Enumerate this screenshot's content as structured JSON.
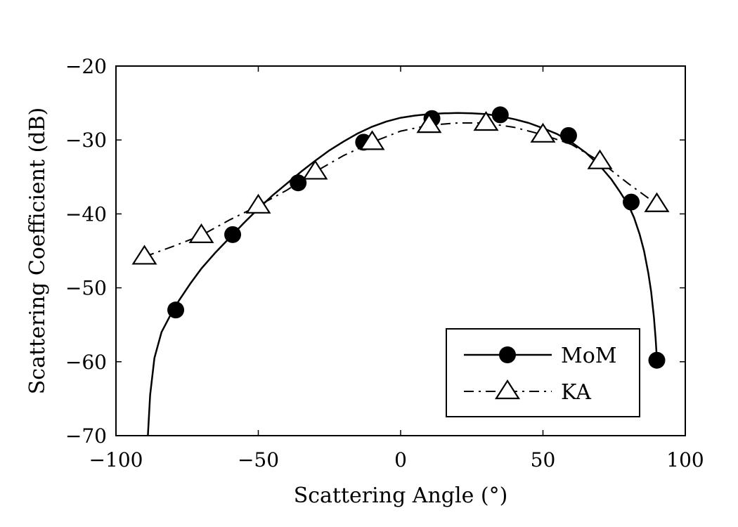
{
  "chart_data": {
    "type": "line",
    "title": "",
    "xlabel": "Scattering Angle (°)",
    "ylabel": "Scattering Coefficient (dB)",
    "xlim": [
      -100,
      100
    ],
    "ylim": [
      -70,
      -20
    ],
    "xticks": [
      -100,
      -50,
      0,
      50,
      100
    ],
    "yticks": [
      -70,
      -60,
      -50,
      -40,
      -30,
      -20
    ],
    "xtick_labels": [
      "−100",
      "−50",
      "0",
      "50",
      "100"
    ],
    "ytick_labels": [
      "−70",
      "−60",
      "−50",
      "−40",
      "−30",
      "−20"
    ],
    "grid": false,
    "legend_position": "bottom-right",
    "series": [
      {
        "name": "MoM",
        "line_style": "solid",
        "marker": "filled-circle",
        "curve_x": [
          -88.8,
          -88,
          -86.5,
          -84,
          -81,
          -78,
          -74,
          -70,
          -65,
          -60,
          -55,
          -50,
          -45,
          -40,
          -35,
          -30,
          -25,
          -20,
          -15,
          -10,
          -5,
          0,
          5,
          10,
          15,
          20,
          25,
          30,
          35,
          40,
          45,
          50,
          55,
          60,
          65,
          70,
          74,
          77,
          80,
          82,
          84,
          85.5,
          87,
          88,
          89,
          89.6,
          90
        ],
        "curve_y": [
          -70,
          -64.5,
          -59.5,
          -56,
          -53.8,
          -51.8,
          -49.5,
          -47.4,
          -45.2,
          -43.2,
          -41.2,
          -39.3,
          -37.5,
          -35.9,
          -34.3,
          -32.8,
          -31.4,
          -30.2,
          -29.1,
          -28.2,
          -27.5,
          -27,
          -26.7,
          -26.5,
          -26.4,
          -26.35,
          -26.4,
          -26.5,
          -26.8,
          -27.2,
          -27.7,
          -28.4,
          -29.2,
          -30.3,
          -31.7,
          -33.5,
          -35.3,
          -37,
          -38.8,
          -40.5,
          -42.8,
          -45,
          -48,
          -50.5,
          -54,
          -57,
          -59.5
        ],
        "x": [
          -79,
          -59,
          -36,
          -13,
          11,
          35,
          59,
          81,
          90
        ],
        "y": [
          -53,
          -42.8,
          -35.8,
          -30.3,
          -27.1,
          -26.6,
          -29.4,
          -38.4,
          -59.8
        ]
      },
      {
        "name": "KA",
        "line_style": "dash-dot",
        "marker": "open-triangle",
        "curve_x": [
          -90,
          -80,
          -70,
          -60,
          -50,
          -40,
          -30,
          -20,
          -10,
          0,
          10,
          20,
          30,
          40,
          50,
          60,
          70,
          80,
          90
        ],
        "curve_y": [
          -45.8,
          -44.4,
          -42.9,
          -40.8,
          -38.9,
          -36.8,
          -34.3,
          -32.1,
          -30.3,
          -28.8,
          -28,
          -27.7,
          -27.7,
          -28.3,
          -29.3,
          -30.6,
          -32.9,
          -35.9,
          -38.7
        ],
        "x": [
          -90,
          -70,
          -50,
          -30,
          -10,
          10,
          30,
          50,
          70,
          90
        ],
        "y": [
          -45.8,
          -42.9,
          -38.9,
          -34.3,
          -30.3,
          -28,
          -27.7,
          -29.3,
          -32.9,
          -38.7
        ]
      }
    ]
  }
}
